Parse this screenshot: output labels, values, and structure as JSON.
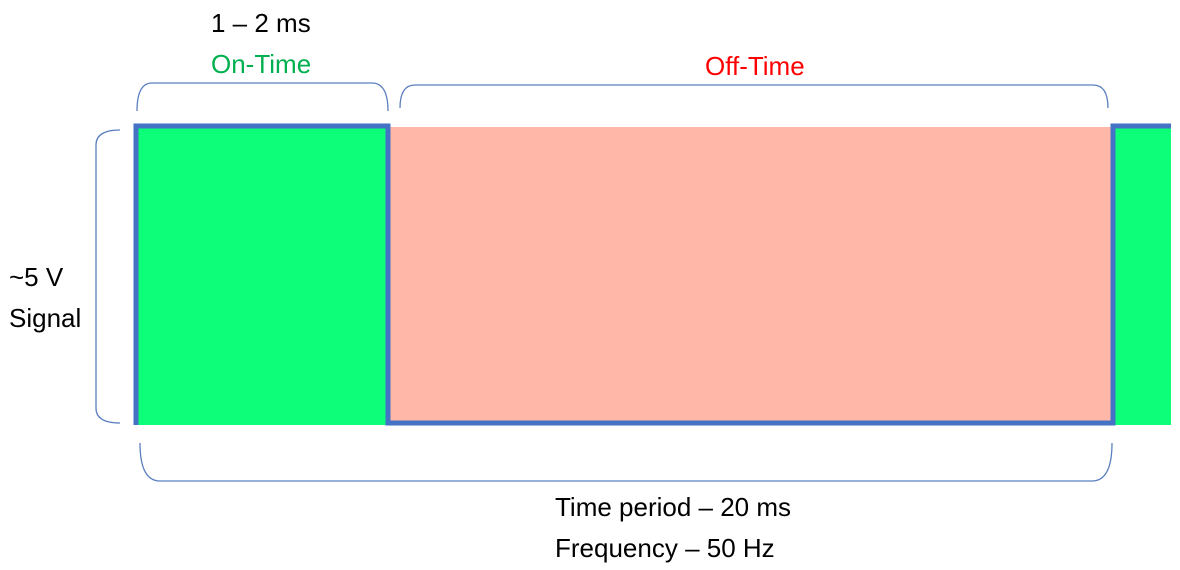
{
  "labels": {
    "pulse_duration": "1 – 2 ms",
    "on_time": "On-Time",
    "off_time": "Off-Time",
    "amplitude_line1": "~5 V",
    "amplitude_line2": "Signal",
    "period": "Time period – 20 ms",
    "frequency": "Frequency – 50 Hz"
  },
  "colors": {
    "on_fill": "#0dff7a",
    "off_fill": "#ffb7a8",
    "signal_line": "#4472c4",
    "bracket": "#5b7fbf",
    "on_text": "#00b050",
    "off_text": "#ff0000"
  }
}
